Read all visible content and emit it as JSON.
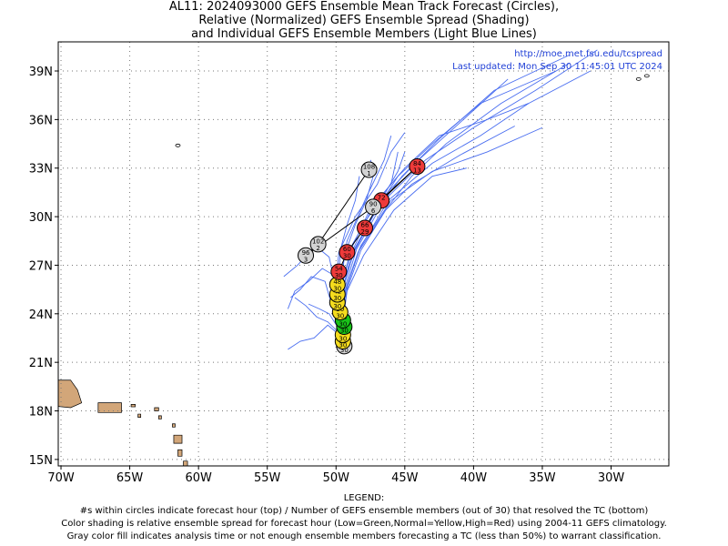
{
  "title": {
    "line1": "AL11: 2024093000 GEFS Ensemble Mean Track Forecast (Circles),",
    "line2": "Relative (Normalized) GEFS Ensemble Spread (Shading)",
    "line3": "and Individual GEFS Ensemble Members (Light Blue Lines)"
  },
  "credit": {
    "url": "http://moe.met.fsu.edu/tcspread",
    "updated": "Last updated: Mon Sep 30 11:45:01 UTC 2024"
  },
  "legend": {
    "heading": "LEGEND:",
    "line1": "#s within circles indicate forecast hour (top) / Number of GEFS ensemble members (out of 30) that resolved the TC (bottom)",
    "line2": "Color shading is relative ensemble spread for forecast hour (Low=Green,Normal=Yellow,High=Red) using 2004-11 GEFS climatology.",
    "line3": "Gray color fill indicates analysis time or not enough ensemble members forecasting a TC (less than 50%) to warrant classification."
  },
  "colors": {
    "gray": "#d3d3d3",
    "green": "#19c219",
    "yellow": "#f5dc1e",
    "red": "#ee3a3a",
    "land": "#d2a679",
    "member_track": "#4a6ef0",
    "credit_text": "#1f3fd6"
  },
  "map": {
    "lon_range": [
      -70.2,
      -25.8
    ],
    "lat_range": [
      14.6,
      40.8
    ],
    "lon_ticks": [
      -70,
      -65,
      -60,
      -55,
      -50,
      -45,
      -40,
      -35,
      -30
    ],
    "lon_labels": [
      "70W",
      "65W",
      "60W",
      "55W",
      "50W",
      "45W",
      "40W",
      "35W",
      "30W"
    ],
    "lat_ticks": [
      15,
      18,
      21,
      24,
      27,
      30,
      33,
      36,
      39
    ],
    "lat_labels": [
      "15N",
      "18N",
      "21N",
      "24N",
      "27N",
      "30N",
      "33N",
      "36N",
      "39N"
    ]
  },
  "mean_track": [
    {
      "hour": "0",
      "members": "30",
      "lon": -49.4,
      "lat": 22.0,
      "color": "gray"
    },
    {
      "hour": "6",
      "members": "30",
      "lon": -49.5,
      "lat": 22.3,
      "color": "yellow"
    },
    {
      "hour": "12",
      "members": "30",
      "lon": -49.5,
      "lat": 22.7,
      "color": "yellow"
    },
    {
      "hour": "18",
      "members": "30",
      "lon": -49.4,
      "lat": 23.2,
      "color": "green"
    },
    {
      "hour": "24",
      "members": "30",
      "lon": -49.5,
      "lat": 23.6,
      "color": "green"
    },
    {
      "hour": "30",
      "members": "30",
      "lon": -49.7,
      "lat": 24.1,
      "color": "yellow"
    },
    {
      "hour": "36",
      "members": "30",
      "lon": -49.9,
      "lat": 24.7,
      "color": "yellow"
    },
    {
      "hour": "42",
      "members": "30",
      "lon": -49.9,
      "lat": 25.2,
      "color": "yellow"
    },
    {
      "hour": "48",
      "members": "30",
      "lon": -49.9,
      "lat": 25.8,
      "color": "yellow"
    },
    {
      "hour": "54",
      "members": "30",
      "lon": -49.8,
      "lat": 26.6,
      "color": "red"
    },
    {
      "hour": "60",
      "members": "30",
      "lon": -49.2,
      "lat": 27.8,
      "color": "red"
    },
    {
      "hour": "66",
      "members": "29",
      "lon": -47.9,
      "lat": 29.3,
      "color": "red"
    },
    {
      "hour": "72",
      "members": "",
      "lon": -46.7,
      "lat": 31.0,
      "color": "red"
    },
    {
      "hour": "84",
      "members": "13",
      "lon": -44.1,
      "lat": 33.1,
      "color": "red"
    },
    {
      "hour": "90",
      "members": "6",
      "lon": -47.3,
      "lat": 30.6,
      "color": "gray"
    },
    {
      "hour": "96",
      "members": "3",
      "lon": -52.2,
      "lat": 27.6,
      "color": "gray"
    },
    {
      "hour": "102",
      "members": "2",
      "lon": -51.3,
      "lat": 28.3,
      "color": "gray"
    },
    {
      "hour": "108",
      "members": "1",
      "lon": -47.6,
      "lat": 32.9,
      "color": "gray"
    }
  ],
  "member_tracks": [
    [
      [
        -49.4,
        22.0
      ],
      [
        -49.6,
        23.5
      ],
      [
        -49.4,
        25.5
      ],
      [
        -48.5,
        28.0
      ],
      [
        -46.5,
        31.0
      ],
      [
        -43.5,
        33.5
      ],
      [
        -40.0,
        35.5
      ],
      [
        -35.5,
        37.8
      ],
      [
        -31.0,
        40.3
      ]
    ],
    [
      [
        -49.4,
        22.0
      ],
      [
        -49.6,
        23.5
      ],
      [
        -49.3,
        25.5
      ],
      [
        -48.3,
        28.0
      ],
      [
        -46.2,
        31.0
      ],
      [
        -43.0,
        33.3
      ],
      [
        -39.5,
        35.0
      ],
      [
        -36.0,
        37.0
      ],
      [
        -31.5,
        39.0
      ]
    ],
    [
      [
        -49.4,
        22.0
      ],
      [
        -49.7,
        23.5
      ],
      [
        -49.5,
        25.6
      ],
      [
        -48.6,
        28.1
      ],
      [
        -46.6,
        31.2
      ],
      [
        -44.0,
        33.5
      ],
      [
        -41.0,
        35.8
      ],
      [
        -37.5,
        38.5
      ]
    ],
    [
      [
        -49.4,
        22.0
      ],
      [
        -49.5,
        23.6
      ],
      [
        -49.2,
        25.7
      ],
      [
        -48.2,
        28.2
      ],
      [
        -46.0,
        31.0
      ],
      [
        -43.0,
        32.8
      ],
      [
        -39.0,
        34.0
      ],
      [
        -35.0,
        35.5
      ]
    ],
    [
      [
        -49.4,
        22.0
      ],
      [
        -49.7,
        23.6
      ],
      [
        -49.6,
        25.8
      ],
      [
        -48.8,
        28.3
      ],
      [
        -47.0,
        31.0
      ],
      [
        -45.0,
        33.0
      ],
      [
        -42.5,
        35.0
      ],
      [
        -39.0,
        36.0
      ],
      [
        -36.0,
        37.0
      ]
    ],
    [
      [
        -49.4,
        22.0
      ],
      [
        -49.6,
        23.4
      ],
      [
        -49.4,
        25.3
      ],
      [
        -48.4,
        27.8
      ],
      [
        -46.4,
        30.4
      ],
      [
        -44.5,
        32.5
      ],
      [
        -42.0,
        34.5
      ],
      [
        -38.0,
        37.0
      ],
      [
        -33.0,
        39.5
      ]
    ],
    [
      [
        -49.4,
        22.0
      ],
      [
        -49.5,
        23.5
      ],
      [
        -49.2,
        25.4
      ],
      [
        -48.0,
        27.6
      ],
      [
        -45.8,
        30.4
      ],
      [
        -43.0,
        32.5
      ],
      [
        -40.5,
        33.0
      ]
    ],
    [
      [
        -49.4,
        22.0
      ],
      [
        -49.6,
        23.7
      ],
      [
        -49.7,
        25.9
      ],
      [
        -49.2,
        28.5
      ],
      [
        -47.8,
        31.2
      ],
      [
        -46.5,
        33.5
      ],
      [
        -46.0,
        35.0
      ]
    ],
    [
      [
        -49.4,
        22.0
      ],
      [
        -49.8,
        23.8
      ],
      [
        -50.0,
        25.9
      ],
      [
        -49.8,
        27.8
      ],
      [
        -48.6,
        30.0
      ],
      [
        -47.0,
        32.0
      ],
      [
        -46.0,
        34.0
      ],
      [
        -45.0,
        35.2
      ]
    ],
    [
      [
        -49.4,
        22.0
      ],
      [
        -49.6,
        23.6
      ],
      [
        -49.5,
        25.5
      ],
      [
        -48.7,
        27.9
      ],
      [
        -47.0,
        30.5
      ],
      [
        -45.5,
        32.5
      ],
      [
        -43.0,
        34.5
      ],
      [
        -39.5,
        37.0
      ],
      [
        -34.0,
        39.0
      ]
    ],
    [
      [
        -49.4,
        22.0
      ],
      [
        -49.5,
        23.5
      ],
      [
        -49.2,
        25.5
      ],
      [
        -48.2,
        27.9
      ],
      [
        -46.4,
        30.4
      ],
      [
        -44.5,
        32.0
      ],
      [
        -41.0,
        33.8
      ],
      [
        -37.0,
        35.6
      ]
    ],
    [
      [
        -49.4,
        22.0
      ],
      [
        -49.7,
        23.5
      ],
      [
        -49.6,
        25.6
      ],
      [
        -48.9,
        28.0
      ],
      [
        -47.5,
        30.5
      ],
      [
        -46.0,
        32.0
      ],
      [
        -45.5,
        34.0
      ]
    ],
    [
      [
        -49.4,
        22.0
      ],
      [
        -49.9,
        23.2
      ],
      [
        -50.5,
        24.0
      ],
      [
        -51.2,
        24.3
      ],
      [
        -52.0,
        24.6
      ]
    ],
    [
      [
        -49.4,
        22.0
      ],
      [
        -50.0,
        23.0
      ],
      [
        -50.6,
        23.5
      ],
      [
        -51.4,
        23.8
      ],
      [
        -52.2,
        24.5
      ],
      [
        -53.0,
        25.0
      ]
    ],
    [
      [
        -49.4,
        22.0
      ],
      [
        -49.9,
        22.8
      ],
      [
        -50.6,
        23.3
      ],
      [
        -51.6,
        22.5
      ],
      [
        -52.6,
        22.3
      ],
      [
        -53.5,
        21.8
      ]
    ],
    [
      [
        -49.4,
        22.0
      ],
      [
        -49.9,
        23.3
      ],
      [
        -50.4,
        24.8
      ],
      [
        -50.8,
        26.0
      ],
      [
        -51.8,
        26.3
      ],
      [
        -52.6,
        25.5
      ],
      [
        -53.3,
        25.0
      ]
    ],
    [
      [
        -49.4,
        22.0
      ],
      [
        -49.8,
        23.5
      ],
      [
        -50.0,
        25.0
      ],
      [
        -50.2,
        26.4
      ],
      [
        -51.0,
        26.8
      ],
      [
        -52.0,
        26.0
      ],
      [
        -53.0,
        25.4
      ],
      [
        -53.5,
        24.3
      ]
    ],
    [
      [
        -49.4,
        22.0
      ],
      [
        -49.8,
        23.6
      ],
      [
        -50.0,
        25.5
      ],
      [
        -50.5,
        27.5
      ],
      [
        -51.5,
        28.2
      ],
      [
        -52.8,
        27.0
      ],
      [
        -53.8,
        26.3
      ]
    ],
    [
      [
        -49.4,
        22.0
      ],
      [
        -49.6,
        23.5
      ],
      [
        -49.6,
        25.5
      ],
      [
        -49.4,
        27.6
      ],
      [
        -48.6,
        29.5
      ],
      [
        -47.8,
        31.0
      ],
      [
        -47.2,
        32.8
      ],
      [
        -47.5,
        33.5
      ]
    ],
    [
      [
        -49.4,
        22.0
      ],
      [
        -49.7,
        23.6
      ],
      [
        -49.8,
        25.8
      ],
      [
        -49.7,
        27.9
      ],
      [
        -49.2,
        29.5
      ],
      [
        -48.6,
        31.0
      ],
      [
        -48.3,
        32.5
      ]
    ],
    [
      [
        -49.4,
        22.0
      ],
      [
        -49.6,
        23.5
      ],
      [
        -49.5,
        25.5
      ],
      [
        -48.9,
        27.7
      ],
      [
        -47.8,
        29.8
      ],
      [
        -46.4,
        31.5
      ],
      [
        -45.5,
        32.8
      ],
      [
        -45.0,
        34.0
      ]
    ],
    [
      [
        -49.4,
        22.0
      ],
      [
        -49.7,
        23.4
      ],
      [
        -49.6,
        25.4
      ],
      [
        -48.7,
        27.8
      ],
      [
        -47.2,
        30.2
      ],
      [
        -45.2,
        32.5
      ],
      [
        -42.5,
        34.8
      ],
      [
        -38.5,
        37.8
      ],
      [
        -33.0,
        40.0
      ]
    ]
  ],
  "coast_points": [
    [
      -28.0,
      38.5
    ],
    [
      -27.4,
      38.7
    ],
    [
      -61.5,
      34.4
    ]
  ]
}
